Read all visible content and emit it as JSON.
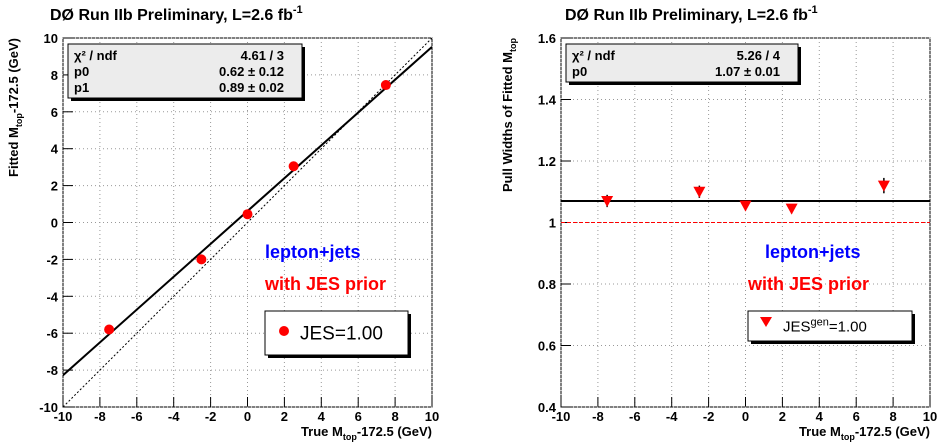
{
  "chart_data": [
    {
      "type": "scatter",
      "title": "DØ Run IIb Preliminary, L=2.6 fb",
      "title_superscript": "-1",
      "x_label": {
        "main": "True M",
        "sub": "top",
        "rest": "-172.5 (GeV)"
      },
      "y_label": {
        "main": "Fitted M",
        "sub": "top",
        "rest": "-172.5 (GeV)"
      },
      "x": [
        -7.5,
        -2.5,
        0,
        2.5,
        7.5
      ],
      "series": [
        {
          "name": "JES=1.00",
          "color": "#ff0000",
          "marker": "circle",
          "values": [
            -5.8,
            -2.0,
            0.45,
            3.05,
            7.45
          ]
        }
      ],
      "xlim": [
        -10,
        10
      ],
      "ylim": [
        -10,
        10
      ],
      "xticks": [
        -10,
        -8,
        -6,
        -4,
        -2,
        0,
        2,
        4,
        6,
        8,
        10
      ],
      "yticks": [
        -10,
        -8,
        -6,
        -4,
        -2,
        0,
        2,
        4,
        6,
        8,
        10
      ],
      "grid": true,
      "fit_line": {
        "intercept": 0.62,
        "slope": 0.89
      },
      "reference_line": {
        "intercept": 0,
        "slope": 1
      },
      "stats": [
        {
          "name": "χ² / ndf",
          "value": "4.61 / 3"
        },
        {
          "name": "p0",
          "value": "0.62 ± 0.12"
        },
        {
          "name": "p1",
          "value": "0.89 ± 0.02"
        }
      ],
      "annotations": [
        {
          "text": "lepton+jets",
          "color": "#0000ff"
        },
        {
          "text": "with JES prior",
          "color": "#ff0000"
        }
      ]
    },
    {
      "type": "scatter",
      "title": "DØ Run IIb Preliminary, L=2.6 fb",
      "title_superscript": "-1",
      "x_label": {
        "main": "True M",
        "sub": "top",
        "rest": "-172.5 (GeV)"
      },
      "y_label": {
        "main": "Pull Widths of Fitted M",
        "sub": "top",
        "rest": ""
      },
      "x": [
        -7.5,
        -2.5,
        0,
        2.5,
        7.5
      ],
      "series": [
        {
          "name": "JES",
          "name_superscript": "gen",
          "name_suffix": "=1.00",
          "color": "#ff0000",
          "marker": "triangle-down",
          "values": [
            1.07,
            1.1,
            1.055,
            1.045,
            1.12
          ],
          "errors": [
            0.02,
            0.02,
            0.015,
            0.015,
            0.025
          ]
        }
      ],
      "xlim": [
        -10,
        10
      ],
      "ylim": [
        0.4,
        1.6
      ],
      "xticks": [
        -10,
        -8,
        -6,
        -4,
        -2,
        0,
        2,
        4,
        6,
        8,
        10
      ],
      "yticks": [
        0.4,
        0.6,
        0.8,
        1,
        1.2,
        1.4,
        1.6
      ],
      "grid": true,
      "fit_line": {
        "intercept": 1.07,
        "slope": 0
      },
      "reference_line": {
        "intercept": 1,
        "slope": 0
      },
      "stats": [
        {
          "name": "χ² / ndf",
          "value": "5.26 / 4"
        },
        {
          "name": "p0",
          "value": "1.07 ± 0.01"
        }
      ],
      "annotations": [
        {
          "text": "lepton+jets",
          "color": "#0000ff"
        },
        {
          "text": "with JES prior",
          "color": "#ff0000"
        }
      ]
    }
  ]
}
